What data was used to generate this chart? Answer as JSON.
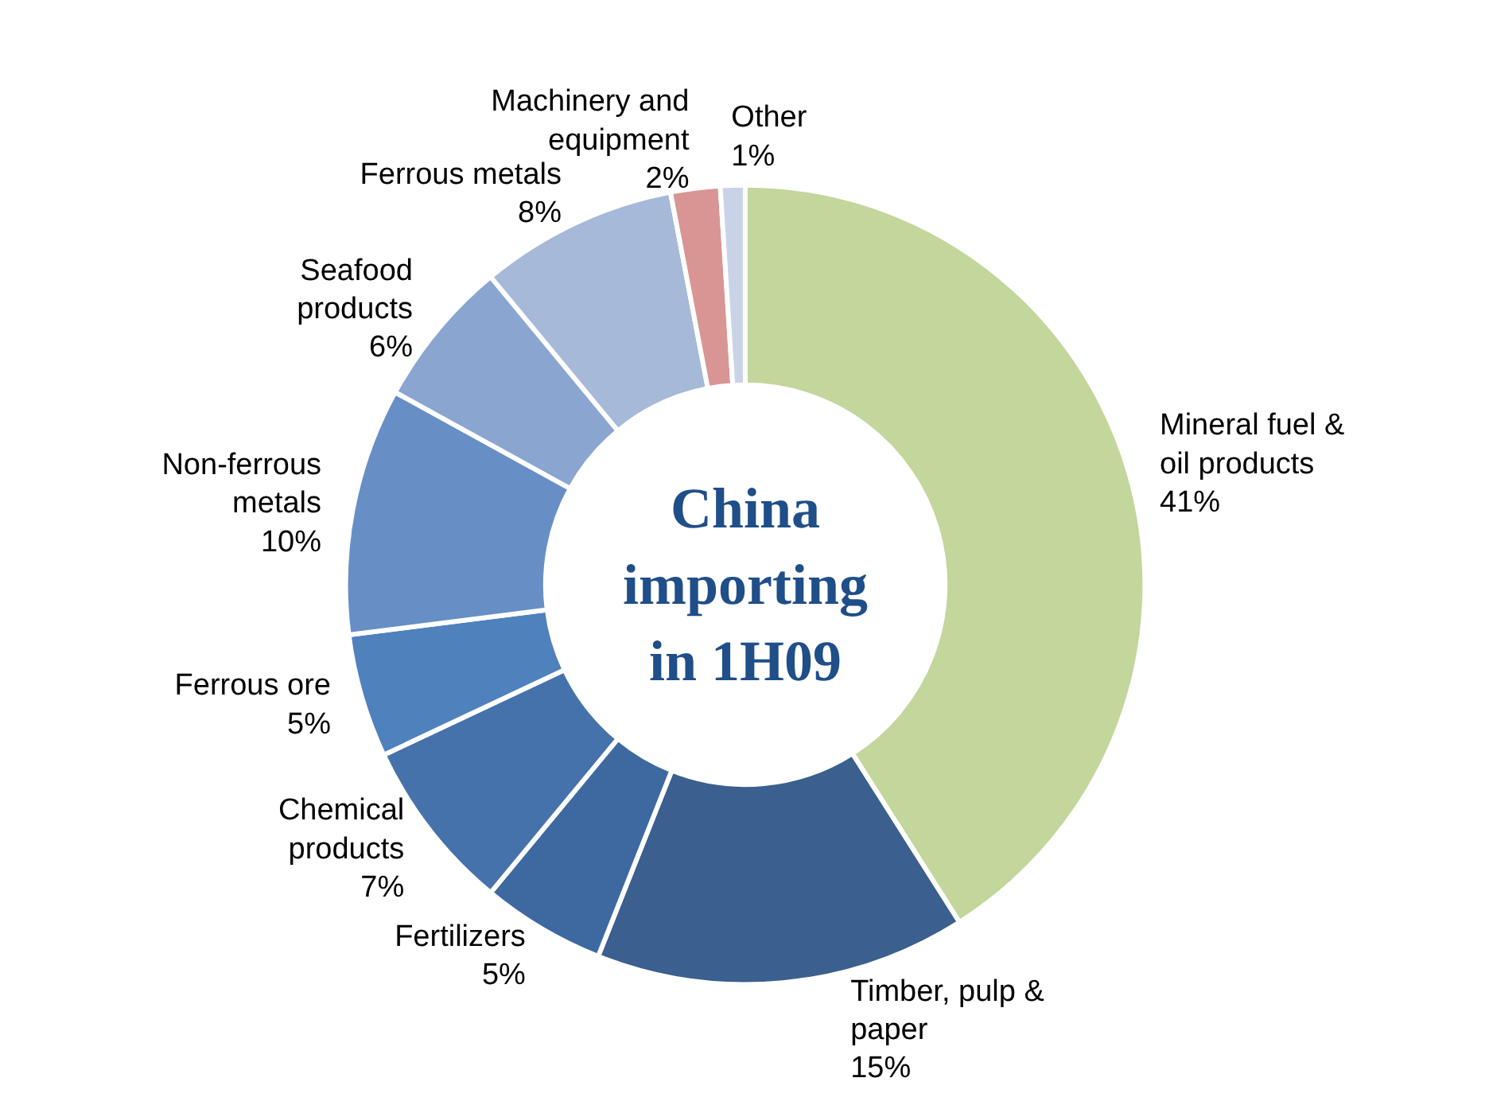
{
  "chart_data": {
    "type": "donut",
    "title": "China\nimporting\nin 1H09",
    "categories": [
      "Mineral fuel &\noil products",
      "Timber, pulp &\npaper",
      "Fertilizers",
      "Chemical\nproducts",
      "Ferrous ore",
      "Non-ferrous\nmetals",
      "Seafood\nproducts",
      "Ferrous metals",
      "Machinery and\nequipment",
      "Other"
    ],
    "values": [
      41,
      15,
      5,
      7,
      5,
      10,
      6,
      8,
      2,
      1
    ],
    "value_labels": [
      "41%",
      "15%",
      "5%",
      "7%",
      "5%",
      "10%",
      "6%",
      "8%",
      "2%",
      "1%"
    ],
    "colors": [
      "#c3d69b",
      "#3b5f8e",
      "#3e69a0",
      "#4572aa",
      "#4f81bd",
      "#678fc6",
      "#8aa5cf",
      "#a6b9d9",
      "#d99594",
      "#c9d3e8"
    ]
  }
}
